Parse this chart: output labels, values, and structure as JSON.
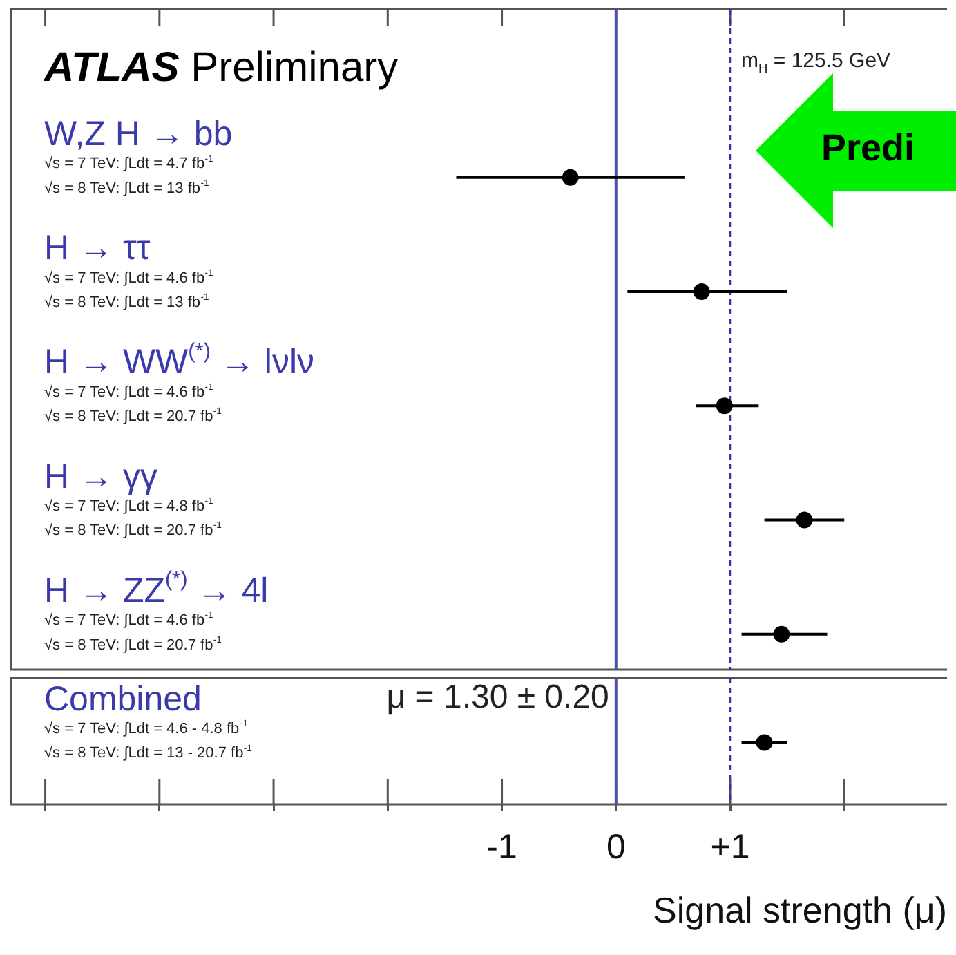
{
  "chart_data": [
    {
      "type": "scatter",
      "title": "ATLAS Preliminary",
      "categories": [
        "W,Z H → bb",
        "H → ττ",
        "H → WW$^{(*)}$ → lνlν",
        "H → γγ",
        "H → ZZ$^{(*)}$ → 4l"
      ],
      "values": [
        -0.4,
        0.75,
        0.95,
        1.65,
        1.45
      ],
      "errors": [
        [
          -1.4,
          0.6
        ],
        [
          0.1,
          1.5
        ],
        [
          0.7,
          1.25
        ],
        [
          1.3,
          2.0
        ],
        [
          1.1,
          1.85
        ]
      ],
      "color": "#000000",
      "marker": "circle",
      "orientation": "horizontal",
      "xlim": [
        -5.3,
        2.9
      ],
      "xticks": [
        {
          "value": -5,
          "label": null
        },
        {
          "value": -4,
          "label": null
        },
        {
          "value": -3,
          "label": null
        },
        {
          "value": -2,
          "label": null
        },
        {
          "value": -1,
          "label": null
        },
        {
          "value": 0,
          "label": null
        },
        {
          "value": 1,
          "label": null
        },
        {
          "value": 2,
          "label": null
        }
      ],
      "tick_labels": false,
      "grid": false,
      "legend": false,
      "ref_lines": [
        {
          "axis": "x",
          "value": 0,
          "color": "#5050b0",
          "line_style": "solid"
        },
        {
          "axis": "x",
          "value": 1,
          "color": "#3333aa",
          "line_style": "dashed"
        }
      ],
      "annotations": [
        "√s = 7 TeV: ∫Ldt = 4.7 fb$^{-1}$",
        "√s = 8 TeV: ∫Ldt = 13 fb$^{-1}$",
        "√s = 7 TeV: ∫Ldt = 4.6 fb$^{-1}$",
        "√s = 8 TeV: ∫Ldt = 13 fb$^{-1}$",
        "√s = 7 TeV: ∫Ldt = 4.6 fb$^{-1}$",
        "√s = 8 TeV: ∫Ldt = 20.7 fb$^{-1}$",
        "√s = 7 TeV: ∫Ldt = 4.8 fb$^{-1}$",
        "√s = 8 TeV: ∫Ldt = 20.7 fb$^{-1}$",
        "√s = 7 TeV: ∫Ldt = 4.6 fb$^{-1}$",
        "√s = 8 TeV: ∫Ldt = 20.7 fb$^{-1}$",
        "m$_{H}$ = 125.5 GeV",
        "Predi"
      ]
    },
    {
      "type": "scatter",
      "xlabel": "Signal strength (μ)",
      "categories": [
        "Combined"
      ],
      "values": [
        1.3
      ],
      "errors": [
        [
          1.1,
          1.5
        ]
      ],
      "color": "#000000",
      "marker": "circle",
      "orientation": "horizontal",
      "xlim": [
        -5.3,
        2.9
      ],
      "xticks": [
        {
          "value": -5,
          "label": null
        },
        {
          "value": -4,
          "label": null
        },
        {
          "value": -3,
          "label": null
        },
        {
          "value": -2,
          "label": null
        },
        {
          "value": -1,
          "label": "-1"
        },
        {
          "value": 0,
          "label": "0"
        },
        {
          "value": 1,
          "label": "+1"
        },
        {
          "value": 2,
          "label": null
        }
      ],
      "tick_labels": "x",
      "grid": false,
      "legend": false,
      "ref_lines": [
        {
          "axis": "x",
          "value": 0,
          "color": "#5050b0",
          "line_style": "solid"
        },
        {
          "axis": "x",
          "value": 1,
          "color": "#3333aa",
          "line_style": "dashed"
        }
      ],
      "annotations": [
        "√s = 7 TeV: ∫Ldt = 4.6 - 4.8 fb$^{-1}$",
        "√s = 8 TeV: ∫Ldt = 13 - 20.7 fb$^{-1}$",
        "μ = 1.30 ± 0.20"
      ]
    }
  ]
}
